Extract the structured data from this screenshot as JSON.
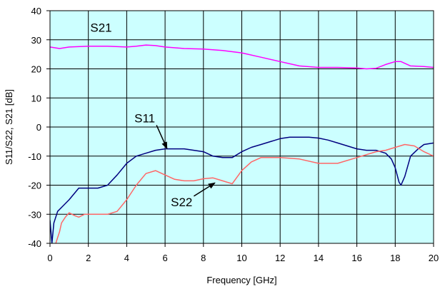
{
  "chart_data": {
    "type": "line",
    "title": "",
    "xlabel": "Frequency [GHz]",
    "ylabel": "S11/S22, S21 [dB]",
    "xlim": [
      0,
      20
    ],
    "ylim": [
      -40,
      40
    ],
    "xticks": [
      0,
      2,
      4,
      6,
      8,
      10,
      12,
      14,
      16,
      18,
      20
    ],
    "yticks": [
      -40,
      -30,
      -20,
      -10,
      0,
      10,
      20,
      30,
      40
    ],
    "grid": true,
    "plot_background": "#ccffff",
    "series": [
      {
        "name": "S21",
        "color": "#ff00ff",
        "x": [
          0,
          0.5,
          1,
          2,
          3,
          4,
          4.5,
          5,
          5.5,
          6,
          7,
          8,
          9,
          10,
          11,
          12,
          13,
          14,
          15,
          16,
          16.5,
          17,
          17.5,
          18,
          18.3,
          18.8,
          19.5,
          20
        ],
        "y": [
          27.5,
          27,
          27.5,
          27.8,
          27.8,
          27.5,
          27.8,
          28.2,
          28,
          27.5,
          27,
          26.8,
          26.3,
          25.5,
          24,
          22.5,
          21,
          20.5,
          20.5,
          20.3,
          20,
          20.2,
          21.5,
          22.5,
          22.5,
          21,
          20.8,
          20.5
        ]
      },
      {
        "name": "S11",
        "color": "#000080",
        "x": [
          0,
          0.1,
          0.2,
          0.4,
          0.7,
          1,
          1.5,
          2,
          2.5,
          3,
          3.5,
          4,
          4.5,
          5,
          5.5,
          6,
          6.5,
          7,
          7.5,
          8,
          8.5,
          9,
          9.5,
          10,
          10.5,
          11,
          11.5,
          12,
          12.5,
          13,
          13.5,
          14,
          14.5,
          15,
          15.5,
          16,
          16.5,
          17,
          17.5,
          17.8,
          18,
          18.2,
          18.3,
          18.5,
          18.8,
          19.2,
          19.5,
          20
        ],
        "y": [
          -32,
          -40,
          -33,
          -29,
          -27,
          -25,
          -21,
          -21,
          -21,
          -20,
          -16.5,
          -12.5,
          -10,
          -9,
          -8,
          -7.5,
          -7.5,
          -7.5,
          -8,
          -8.5,
          -10,
          -10.5,
          -10.5,
          -8.5,
          -7,
          -6,
          -5,
          -4,
          -3.5,
          -3.5,
          -3.5,
          -3.8,
          -4.5,
          -5.5,
          -6.5,
          -7.5,
          -8,
          -8,
          -9,
          -11,
          -14,
          -19,
          -20,
          -17,
          -10,
          -7.5,
          -6,
          -5.5
        ]
      },
      {
        "name": "S22",
        "color": "#ff6666",
        "x": [
          0.3,
          0.4,
          0.5,
          0.6,
          0.8,
          1,
          1.3,
          1.5,
          1.8,
          2,
          2.5,
          3,
          3.5,
          4,
          4.5,
          5,
          5.5,
          6,
          6.5,
          7,
          7.5,
          8,
          8.5,
          9,
          9.5,
          10,
          10.5,
          11,
          12,
          13,
          14,
          15,
          16,
          17,
          17.5,
          18,
          18.5,
          19,
          19.5,
          20
        ],
        "y": [
          -40,
          -38,
          -36,
          -33,
          -31,
          -29.5,
          -30.5,
          -31,
          -30,
          -30,
          -30,
          -30,
          -29,
          -25,
          -20,
          -16,
          -15,
          -16.5,
          -18,
          -18.5,
          -18.5,
          -17.8,
          -17.5,
          -18.5,
          -19.5,
          -15,
          -12,
          -10.5,
          -10.5,
          -11,
          -12.5,
          -12.5,
          -10.5,
          -8.5,
          -8,
          -7,
          -6,
          -6.5,
          -8.5,
          -10
        ]
      }
    ],
    "annotations": [
      {
        "text": "S21",
        "x": 2.1,
        "y": 32.8
      },
      {
        "text": "S11",
        "x": 4.4,
        "y": 1.6,
        "arrow_to_x": 6.1,
        "arrow_to_y": -7.4
      },
      {
        "text": "S22",
        "x": 6.3,
        "y": -27.2,
        "arrow_to_x": 8.6,
        "arrow_to_y": -19.2
      }
    ]
  }
}
